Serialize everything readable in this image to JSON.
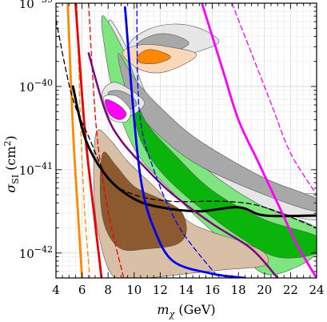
{
  "chart_data": {
    "type": "line",
    "title": "",
    "x_axis": {
      "label_symbol": "m",
      "label_sub": "χ",
      "label_unit": " (GeV)",
      "range": [
        4,
        24
      ],
      "scale": "linear",
      "ticks": [
        4,
        6,
        8,
        10,
        12,
        14,
        16,
        18,
        20,
        22,
        24
      ],
      "tick_labels": [
        "4",
        "6",
        "8",
        "10",
        "12",
        "14",
        "16",
        "18",
        "20",
        "22",
        "24"
      ]
    },
    "y_axis": {
      "label_symbol": "σ",
      "label_sub": "SI",
      "label_unit_open": " (cm",
      "label_unit_sup": "2",
      "label_unit_close": ")",
      "range_exponent": [
        -42.3,
        -39
      ],
      "scale": "log",
      "ticks_exponent": [
        -42,
        -41,
        -40,
        -39
      ],
      "tick_label_base": "10",
      "tick_label_exponents": [
        "−42",
        "−41",
        "−40",
        "−39"
      ]
    },
    "grid": true,
    "colors": {
      "black": "#000000",
      "gray_fill_light": "#e6e6e6",
      "gray_fill_dark": "#a8a8a8",
      "green_light": "#7fe67f",
      "green_dark": "#0ab40a",
      "brown_light": "#d9bfa6",
      "brown_dark": "#8c5a2e",
      "peach": "#f8d8b8",
      "orange": "#ff8800",
      "magenta": "#ff00ff",
      "purple": "#7a0a7a",
      "blue": "#0000ee",
      "red": "#ee0000"
    },
    "regions": [
      {
        "name_key": "gray-outer",
        "color": "gray_fill_light",
        "points": [
          [
            8.1,
            -39.2
          ],
          [
            9.8,
            -39.65
          ],
          [
            11,
            -40.1
          ],
          [
            13,
            -40.45
          ],
          [
            16,
            -40.85
          ],
          [
            20,
            -41.2
          ],
          [
            22,
            -41.3
          ],
          [
            24,
            -41.3
          ],
          [
            24,
            -41.6
          ],
          [
            20,
            -41.45
          ],
          [
            16,
            -41.2
          ],
          [
            13,
            -40.95
          ],
          [
            10.5,
            -40.6
          ],
          [
            9.1,
            -40.2
          ],
          [
            8.5,
            -39.8
          ]
        ]
      },
      {
        "name_key": "green-outer",
        "color": "green_light",
        "points": [
          [
            7.6,
            -39.15
          ],
          [
            9.3,
            -39.6
          ],
          [
            10.8,
            -40.15
          ],
          [
            12.8,
            -40.55
          ],
          [
            16,
            -41.05
          ],
          [
            20,
            -41.45
          ],
          [
            24,
            -41.7
          ],
          [
            24,
            -42.0
          ],
          [
            22,
            -42.2
          ],
          [
            20,
            -42.25
          ],
          [
            18,
            -42.0
          ],
          [
            15,
            -41.6
          ],
          [
            12.5,
            -41.2
          ],
          [
            10.2,
            -40.8
          ],
          [
            8.6,
            -40.2
          ],
          [
            7.8,
            -39.6
          ]
        ]
      },
      {
        "name_key": "gray-inner",
        "color": "gray_fill_dark",
        "points": [
          [
            8.8,
            -39.6
          ],
          [
            10,
            -39.9
          ],
          [
            12,
            -40.25
          ],
          [
            15,
            -40.65
          ],
          [
            20,
            -41.1
          ],
          [
            24,
            -41.35
          ],
          [
            24,
            -41.5
          ],
          [
            20,
            -41.3
          ],
          [
            15,
            -40.95
          ],
          [
            12,
            -40.6
          ],
          [
            10,
            -40.25
          ],
          [
            9.2,
            -39.95
          ]
        ]
      },
      {
        "name_key": "green-inner",
        "color": "green_dark",
        "points": [
          [
            9.9,
            -40.1
          ],
          [
            11,
            -40.45
          ],
          [
            13,
            -40.8
          ],
          [
            16,
            -41.25
          ],
          [
            20,
            -41.6
          ],
          [
            24,
            -41.8
          ],
          [
            24,
            -42.0
          ],
          [
            21,
            -42.05
          ],
          [
            18,
            -41.8
          ],
          [
            15,
            -41.45
          ],
          [
            12.5,
            -41.1
          ],
          [
            11,
            -40.8
          ],
          [
            10.2,
            -40.5
          ]
        ]
      },
      {
        "name_key": "brown-outer",
        "color": "brown_light",
        "points": [
          [
            7.1,
            -40.55
          ],
          [
            8.2,
            -40.65
          ],
          [
            9.5,
            -40.9
          ],
          [
            11.5,
            -41.2
          ],
          [
            14,
            -41.6
          ],
          [
            16,
            -41.75
          ],
          [
            18,
            -41.85
          ],
          [
            20,
            -42.0
          ],
          [
            20,
            -42.15
          ],
          [
            17,
            -42.2
          ],
          [
            14,
            -42.25
          ],
          [
            11,
            -42.3
          ],
          [
            8.5,
            -42.3
          ],
          [
            7.3,
            -41.8
          ],
          [
            6.9,
            -41.2
          ]
        ]
      },
      {
        "name_key": "brown-inner",
        "color": "brown_dark",
        "points": [
          [
            7.6,
            -40.8
          ],
          [
            8.6,
            -40.95
          ],
          [
            10,
            -41.2
          ],
          [
            12,
            -41.35
          ],
          [
            13.6,
            -41.5
          ],
          [
            14,
            -41.75
          ],
          [
            13.2,
            -41.9
          ],
          [
            11,
            -41.95
          ],
          [
            9,
            -41.95
          ],
          [
            7.8,
            -41.7
          ],
          [
            7.4,
            -41.3
          ]
        ]
      },
      {
        "name_key": "gray-blob-top-outer",
        "color": "gray_fill_light",
        "points": [
          [
            9.6,
            -39.5
          ],
          [
            11,
            -39.32
          ],
          [
            13,
            -39.25
          ],
          [
            15,
            -39.3
          ],
          [
            16.5,
            -39.45
          ],
          [
            15.5,
            -39.55
          ],
          [
            13,
            -39.65
          ],
          [
            10.5,
            -39.7
          ]
        ]
      },
      {
        "name_key": "gray-blob-top-inner",
        "color": "gray_fill_dark",
        "points": [
          [
            10.2,
            -39.5
          ],
          [
            11.5,
            -39.38
          ],
          [
            13,
            -39.38
          ],
          [
            14.2,
            -39.48
          ],
          [
            13,
            -39.58
          ],
          [
            11.2,
            -39.6
          ]
        ]
      },
      {
        "name_key": "peach-blob",
        "color": "peach",
        "points": [
          [
            9.1,
            -39.6
          ],
          [
            10.5,
            -39.5
          ],
          [
            12.5,
            -39.52
          ],
          [
            14.8,
            -39.62
          ],
          [
            12.5,
            -39.82
          ],
          [
            10.5,
            -39.8
          ]
        ]
      },
      {
        "name_key": "orange-blob",
        "color": "orange",
        "points": [
          [
            10.2,
            -39.65
          ],
          [
            11,
            -39.56
          ],
          [
            12,
            -39.58
          ],
          [
            12.8,
            -39.65
          ],
          [
            11.8,
            -39.72
          ],
          [
            10.6,
            -39.72
          ]
        ]
      },
      {
        "name_key": "gray-blob-mid-outer",
        "color": "gray_fill_light",
        "points": [
          [
            7.6,
            -40.05
          ],
          [
            8.5,
            -39.95
          ],
          [
            9.8,
            -40.05
          ],
          [
            10.8,
            -40.2
          ],
          [
            9.8,
            -40.35
          ],
          [
            8.5,
            -40.4
          ],
          [
            7.7,
            -40.25
          ]
        ]
      },
      {
        "name_key": "gray-blob-mid-inner",
        "color": "gray_fill_dark",
        "points": [
          [
            8,
            -40.08
          ],
          [
            8.8,
            -40.05
          ],
          [
            9.8,
            -40.12
          ],
          [
            10.2,
            -40.22
          ],
          [
            9.4,
            -40.28
          ],
          [
            8.4,
            -40.22
          ]
        ]
      },
      {
        "name_key": "white-blob",
        "color": "white",
        "points": [
          [
            7.7,
            -40.12
          ],
          [
            8.7,
            -40.12
          ],
          [
            9.7,
            -40.28
          ],
          [
            9.4,
            -40.42
          ],
          [
            8.3,
            -40.4
          ],
          [
            7.8,
            -40.25
          ]
        ]
      },
      {
        "name_key": "magenta-blob",
        "color": "magenta",
        "points": [
          [
            7.8,
            -40.16
          ],
          [
            8.8,
            -40.22
          ],
          [
            9.4,
            -40.33
          ],
          [
            8.9,
            -40.4
          ],
          [
            8.1,
            -40.33
          ]
        ]
      }
    ],
    "series": [
      {
        "color": "orange",
        "style": "dashed",
        "width": 1.3,
        "points": [
          [
            5.6,
            -39
          ],
          [
            5.9,
            -40.5
          ],
          [
            6.2,
            -41.5
          ],
          [
            6.6,
            -42.3
          ]
        ]
      },
      {
        "color": "orange",
        "style": "solid",
        "width": 2.8,
        "points": [
          [
            4.9,
            -39
          ],
          [
            5.3,
            -40.5
          ],
          [
            5.6,
            -41.3
          ],
          [
            6.0,
            -42.3
          ]
        ]
      },
      {
        "color": "red",
        "style": "dashed",
        "width": 1.3,
        "points": [
          [
            6.5,
            -39
          ],
          [
            7.1,
            -40.5
          ],
          [
            8,
            -41.5
          ],
          [
            9.2,
            -42.3
          ]
        ]
      },
      {
        "color": "red",
        "style": "solid",
        "width": 2.8,
        "points": [
          [
            5.5,
            -39
          ],
          [
            6.2,
            -40.5
          ],
          [
            6.9,
            -41.5
          ],
          [
            7.5,
            -42.3
          ]
        ]
      },
      {
        "color": "black",
        "style": "dashed",
        "width": 1.3,
        "points": [
          [
            4.0,
            -39.2
          ],
          [
            5.2,
            -40.1
          ],
          [
            6.5,
            -40.6
          ],
          [
            8,
            -41.1
          ],
          [
            10,
            -41.3
          ],
          [
            13,
            -41.38
          ],
          [
            17,
            -41.38
          ],
          [
            20,
            -41.45
          ],
          [
            24,
            -41.7
          ]
        ]
      },
      {
        "color": "black",
        "style": "solid",
        "width": 3,
        "points": [
          [
            5.3,
            -40
          ],
          [
            6.3,
            -40.65
          ],
          [
            8,
            -41.1
          ],
          [
            10,
            -41.35
          ],
          [
            12,
            -41.45
          ],
          [
            15,
            -41.5
          ],
          [
            18,
            -41.45
          ],
          [
            20,
            -41.55
          ],
          [
            24,
            -41.55
          ]
        ]
      },
      {
        "color": "purple",
        "style": "solid",
        "width": 2.5,
        "points": [
          [
            6.5,
            -39.6
          ],
          [
            7.8,
            -40.3
          ],
          [
            9,
            -40.65
          ],
          [
            11,
            -41.0
          ],
          [
            13,
            -41.3
          ],
          [
            16,
            -41.65
          ],
          [
            19,
            -41.95
          ],
          [
            21,
            -42.3
          ]
        ]
      },
      {
        "color": "blue",
        "style": "dashed",
        "width": 1.3,
        "points": [
          [
            10.2,
            -39
          ],
          [
            10.4,
            -40.3
          ],
          [
            11.5,
            -41
          ],
          [
            13.5,
            -41.7
          ],
          [
            16.5,
            -42.3
          ]
        ]
      },
      {
        "color": "blue",
        "style": "solid",
        "width": 2.8,
        "points": [
          [
            9.3,
            -39.05
          ],
          [
            10,
            -40.4
          ],
          [
            10.6,
            -41.2
          ],
          [
            11.5,
            -41.7
          ],
          [
            13,
            -42.1
          ],
          [
            16,
            -42.25
          ],
          [
            18.5,
            -42.3
          ]
        ]
      },
      {
        "color": "magenta",
        "style": "dashed",
        "width": 1.3,
        "points": [
          [
            17.5,
            -39
          ],
          [
            19,
            -39.6
          ],
          [
            20.5,
            -40.2
          ],
          [
            22,
            -40.8
          ],
          [
            24,
            -41.3
          ]
        ]
      },
      {
        "color": "magenta",
        "style": "solid",
        "width": 2.8,
        "points": [
          [
            15.2,
            -39
          ],
          [
            16.8,
            -39.8
          ],
          [
            18,
            -40.4
          ],
          [
            19.5,
            -40.9
          ],
          [
            21,
            -41.4
          ],
          [
            22.5,
            -41.9
          ],
          [
            24,
            -42.3
          ]
        ]
      }
    ]
  }
}
